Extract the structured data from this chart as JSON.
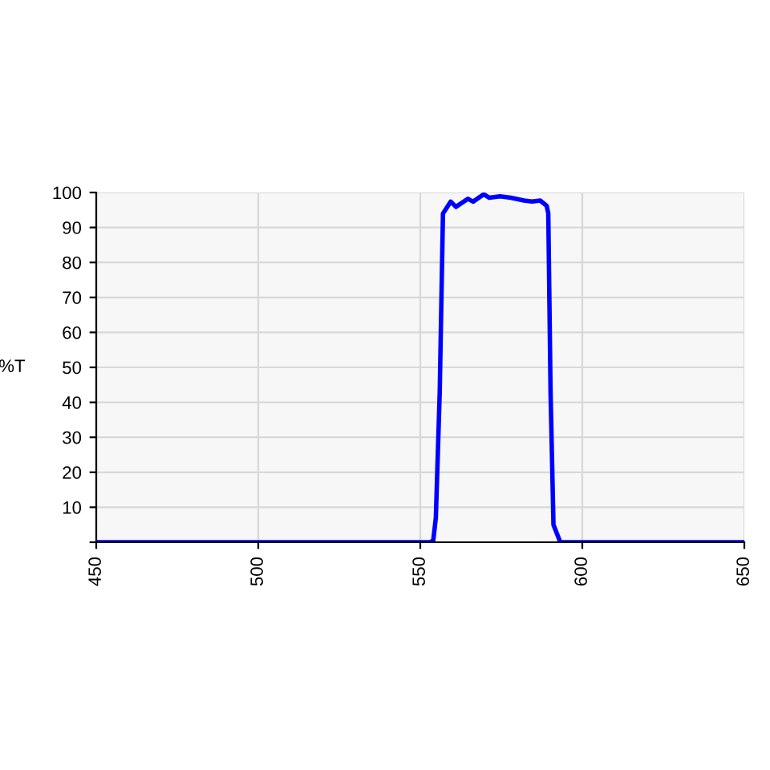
{
  "chart_data": {
    "type": "line",
    "ylabel": "%T",
    "series": [
      {
        "color": "#0000ff",
        "x": [
          450,
          553,
          554,
          554.8,
          556,
          557,
          559.4,
          561,
          564.7,
          566.3,
          569.6,
          571.3,
          574.6,
          577.9,
          582,
          584.5,
          587,
          589,
          589.5,
          590.2,
          591.1,
          593.2,
          650
        ],
        "values": [
          0,
          0,
          0.5,
          7,
          43,
          94,
          97.4,
          95.9,
          98.2,
          97.4,
          99.5,
          98.5,
          98.9,
          98.5,
          97.7,
          97.4,
          97.7,
          96.2,
          94,
          43,
          5,
          0,
          0
        ]
      }
    ],
    "xlim": [
      450,
      650
    ],
    "xticks": [
      450,
      500,
      550,
      600,
      650
    ],
    "ylim": [
      0,
      100
    ],
    "yticks": [
      {
        "value": 0,
        "label": null
      },
      10,
      20,
      30,
      40,
      50,
      60,
      70,
      80,
      90,
      100
    ],
    "grid": true,
    "marker": "none",
    "line_style": "solid"
  }
}
